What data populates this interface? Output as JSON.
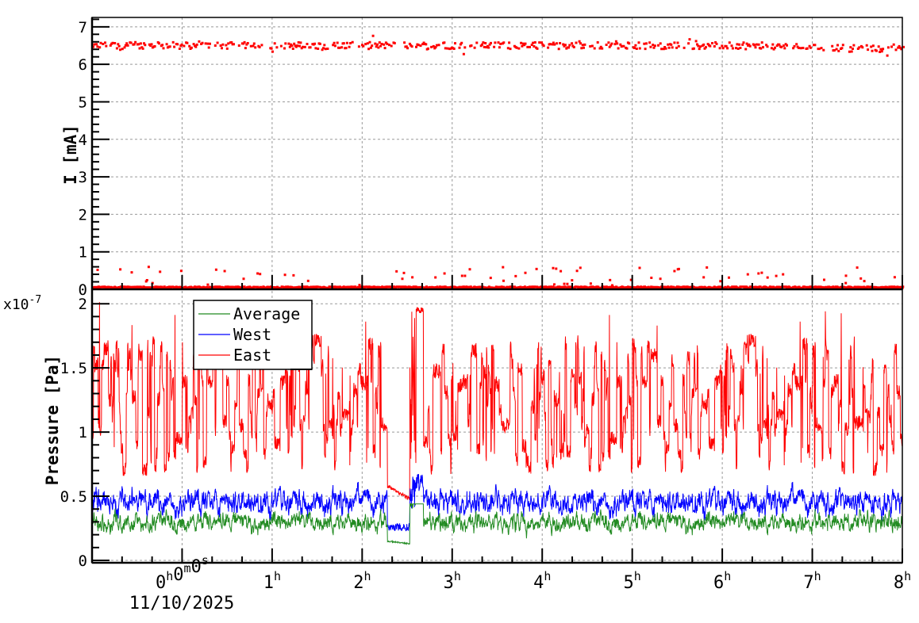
{
  "chart_data": [
    {
      "type": "scatter",
      "title": "",
      "panel": "top",
      "xlabel": "",
      "ylabel": "I [mA]",
      "ylim": [
        0,
        7.25
      ],
      "yticks": [
        0,
        1,
        2,
        3,
        4,
        5,
        6,
        7
      ],
      "grid": true,
      "series": [
        {
          "name": "I",
          "color": "#ff0000",
          "description": "Two bands of points: an upper band around 6.3-6.7 mA (mean ~6.5, slightly decreasing to ~6.4 near 8h) with gaps near 2h25m and 7h10m; a lower band at ~0.05 mA with sparse outliers up to ~0.6 mA",
          "upper_band": {
            "mean": 6.5,
            "min": 6.25,
            "max": 6.75,
            "end_mean": 6.4
          },
          "lower_band": {
            "mean": 0.05,
            "outlier_max": 0.6
          }
        }
      ]
    },
    {
      "type": "line",
      "title": "",
      "panel": "bottom",
      "xlabel": "",
      "ylabel": "Pressure [Pa]",
      "y_multiplier": "x10^-7",
      "ylim": [
        0,
        2.1
      ],
      "yticks": [
        0,
        0.5,
        1,
        1.5,
        2
      ],
      "ytick_labels": [
        "0",
        "0.5",
        "1",
        "1.5",
        "2"
      ],
      "grid": true,
      "legend_position": "upper-left",
      "x_axis": {
        "type": "time",
        "range_hours": [
          -1,
          8
        ],
        "ticks_hours": [
          0,
          1,
          2,
          3,
          4,
          5,
          6,
          7,
          8
        ],
        "tick_labels": [
          "0h0m0s",
          "1h",
          "2h",
          "3h",
          "4h",
          "5h",
          "6h",
          "7h",
          "8h"
        ],
        "date_offset_label": "11/10/2025"
      },
      "series": [
        {
          "name": "Average",
          "color": "#228b22",
          "typical_min": 0.2,
          "typical_max": 0.42,
          "mean": 0.3,
          "dip": {
            "start_h": 2.28,
            "end_h": 2.53,
            "value": 0.12
          }
        },
        {
          "name": "West",
          "color": "#0000ff",
          "typical_min": 0.3,
          "typical_max": 0.65,
          "mean": 0.45,
          "dip": {
            "start_h": 2.28,
            "end_h": 2.53,
            "value": 0.26
          }
        },
        {
          "name": "East",
          "color": "#ff0000",
          "typical_min": 0.7,
          "typical_max": 1.72,
          "mean": 1.1,
          "max": 2.0,
          "dip": {
            "start_h": 2.28,
            "end_h": 2.53,
            "value": 0.47
          },
          "plateau": {
            "start_h": 2.6,
            "end_h": 2.68,
            "value": 1.95
          }
        }
      ]
    }
  ],
  "labels": {
    "top_ylabel": "I [mA]",
    "bottom_ylabel": "Pressure [Pa]",
    "multiplier_base": "x10",
    "multiplier_exp": "-7",
    "date_label": "11/10/2025",
    "legend": [
      "Average",
      "West",
      "East"
    ],
    "top_yticks": [
      "0",
      "1",
      "2",
      "3",
      "4",
      "5",
      "6",
      "7"
    ],
    "bottom_yticks": [
      "0",
      "0.5",
      "1",
      "1.5",
      "2"
    ],
    "x_first_tick": {
      "h": "0",
      "m": "0",
      "s": "0"
    },
    "x_hour_ticks": [
      "1",
      "2",
      "3",
      "4",
      "5",
      "6",
      "7",
      "8"
    ]
  }
}
